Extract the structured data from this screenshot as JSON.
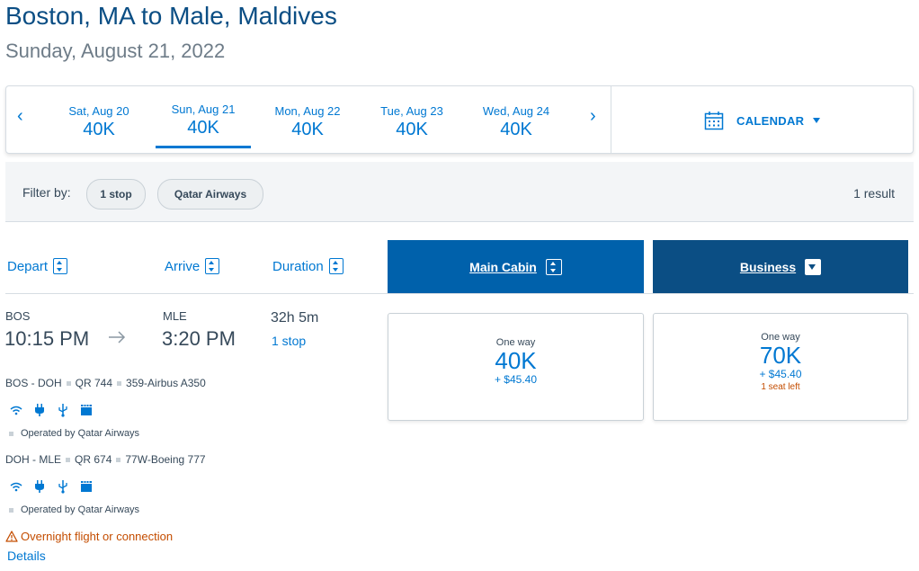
{
  "header": {
    "title": "Boston, MA to Male, Maldives",
    "subtitle": "Sunday, August 21, 2022"
  },
  "date_strip": {
    "prev_arrow": "‹",
    "next_arrow": "›",
    "days": [
      {
        "label": "Sat, Aug 20",
        "price": "40K"
      },
      {
        "label": "Sun, Aug 21",
        "price": "40K",
        "selected": true
      },
      {
        "label": "Mon, Aug 22",
        "price": "40K"
      },
      {
        "label": "Tue, Aug 23",
        "price": "40K"
      },
      {
        "label": "Wed, Aug 24",
        "price": "40K"
      }
    ],
    "calendar_label": "CALENDAR"
  },
  "filters": {
    "label": "Filter by:",
    "chips": [
      "1 stop",
      "Qatar Airways"
    ],
    "result_count": "1 result"
  },
  "sort_header": {
    "depart": "Depart",
    "arrive": "Arrive",
    "duration": "Duration"
  },
  "cabins": {
    "main": {
      "label": "Main Cabin",
      "color": "#0061ab"
    },
    "business": {
      "label": "Business",
      "color": "#0b4e84"
    }
  },
  "flight": {
    "origin": "BOS",
    "depart_time": "10:15 PM",
    "destination": "MLE",
    "arrive_time": "3:20 PM",
    "duration": "32h 5m",
    "stops": "1 stop",
    "segments": [
      {
        "route": "BOS - DOH",
        "flight_no": "QR 744",
        "aircraft": "359-Airbus A350",
        "operator": "Operated by Qatar Airways"
      },
      {
        "route": "DOH - MLE",
        "flight_no": "QR 674",
        "aircraft": "77W-Boeing 777",
        "operator": "Operated by Qatar Airways"
      }
    ],
    "amenity_icons": [
      "wifi-icon",
      "power-outlet-icon",
      "usb-icon",
      "entertainment-icon"
    ],
    "overnight_warning": "Overnight flight or connection",
    "details_link": "Details"
  },
  "fares": {
    "main": {
      "label": "One way",
      "points": "40K",
      "taxes": "+ $45.40"
    },
    "business": {
      "label": "One way",
      "points": "70K",
      "taxes": "+ $45.40",
      "seats_left": "1 seat left"
    }
  }
}
